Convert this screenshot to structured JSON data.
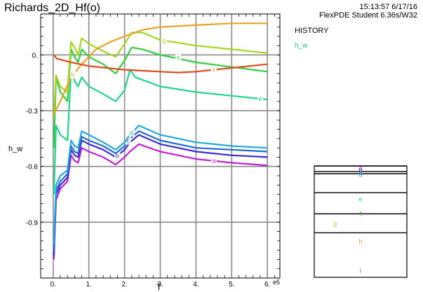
{
  "header": {
    "title": "Richards_2D_Hf(o)",
    "timestamp": "15:13:57 6/17/16",
    "version": "FlexPDE Student 6.36s/W32"
  },
  "side": {
    "history_label": "HISTORY",
    "variable_label": "h_w"
  },
  "chart_data": {
    "type": "line",
    "xlabel": "T",
    "ylabel": "h_w",
    "x_multiplier_label": "e5",
    "xlim": [
      -0.35,
      6.35
    ],
    "ylim": [
      -1.2,
      0.22
    ],
    "x_ticks": [
      0,
      1,
      2,
      3,
      4,
      5,
      6
    ],
    "x_tick_labels": [
      "0.",
      "1.",
      "2.",
      "3.",
      "4.",
      "5.",
      "6."
    ],
    "y_ticks": [
      0,
      -0.3,
      -0.6,
      -0.9
    ],
    "y_tick_labels": [
      "0.",
      "-0.3",
      "-0.6",
      "-0.9"
    ],
    "grid": true,
    "series": [
      {
        "name": "a",
        "color": "#c21fd6",
        "label_at": 4.5,
        "points": [
          [
            0.02,
            -1.1
          ],
          [
            0.08,
            -0.78
          ],
          [
            0.2,
            -0.72
          ],
          [
            0.4,
            -0.68
          ],
          [
            0.5,
            -0.54
          ],
          [
            0.6,
            -0.57
          ],
          [
            0.7,
            -0.58
          ],
          [
            0.8,
            -0.5
          ],
          [
            1.0,
            -0.52
          ],
          [
            1.4,
            -0.55
          ],
          [
            1.75,
            -0.59
          ],
          [
            2.0,
            -0.55
          ],
          [
            2.15,
            -0.52
          ],
          [
            2.4,
            -0.48
          ],
          [
            3.0,
            -0.52
          ],
          [
            4.0,
            -0.56
          ],
          [
            5.0,
            -0.58
          ],
          [
            6.0,
            -0.595
          ]
        ]
      },
      {
        "name": "b",
        "color": "#3a2bd6",
        "label_at": 1.8,
        "points": [
          [
            0.02,
            -1.08
          ],
          [
            0.08,
            -0.75
          ],
          [
            0.2,
            -0.7
          ],
          [
            0.4,
            -0.66
          ],
          [
            0.5,
            -0.51
          ],
          [
            0.6,
            -0.54
          ],
          [
            0.7,
            -0.55
          ],
          [
            0.8,
            -0.46
          ],
          [
            1.0,
            -0.48
          ],
          [
            1.4,
            -0.51
          ],
          [
            1.75,
            -0.55
          ],
          [
            2.0,
            -0.51
          ],
          [
            2.15,
            -0.47
          ],
          [
            2.4,
            -0.43
          ],
          [
            3.0,
            -0.48
          ],
          [
            4.0,
            -0.52
          ],
          [
            5.0,
            -0.54
          ],
          [
            6.0,
            -0.55
          ]
        ]
      },
      {
        "name": "c",
        "color": "#1f6bd6",
        "label_at": 2.1,
        "points": [
          [
            0.02,
            -1.06
          ],
          [
            0.08,
            -0.73
          ],
          [
            0.2,
            -0.68
          ],
          [
            0.4,
            -0.64
          ],
          [
            0.5,
            -0.49
          ],
          [
            0.6,
            -0.52
          ],
          [
            0.7,
            -0.53
          ],
          [
            0.8,
            -0.44
          ],
          [
            1.0,
            -0.46
          ],
          [
            1.4,
            -0.49
          ],
          [
            1.75,
            -0.53
          ],
          [
            2.0,
            -0.49
          ],
          [
            2.15,
            -0.45
          ],
          [
            2.4,
            -0.41
          ],
          [
            3.0,
            -0.46
          ],
          [
            4.0,
            -0.5
          ],
          [
            5.0,
            -0.51
          ],
          [
            6.0,
            -0.52
          ]
        ]
      },
      {
        "name": "d",
        "color": "#1fa9e0",
        "label_at": 2.2,
        "points": [
          [
            0.02,
            -1.02
          ],
          [
            0.08,
            -0.7
          ],
          [
            0.2,
            -0.65
          ],
          [
            0.4,
            -0.62
          ],
          [
            0.5,
            -0.46
          ],
          [
            0.6,
            -0.49
          ],
          [
            0.7,
            -0.5
          ],
          [
            0.8,
            -0.41
          ],
          [
            1.0,
            -0.43
          ],
          [
            1.4,
            -0.47
          ],
          [
            1.75,
            -0.51
          ],
          [
            2.0,
            -0.47
          ],
          [
            2.15,
            -0.43
          ],
          [
            2.4,
            -0.38
          ],
          [
            3.0,
            -0.43
          ],
          [
            4.0,
            -0.47
          ],
          [
            5.0,
            -0.49
          ],
          [
            6.0,
            -0.5
          ]
        ]
      },
      {
        "name": "e",
        "color": "#1fd68c",
        "label_at": 5.8,
        "points": [
          [
            0.02,
            -0.75
          ],
          [
            0.08,
            -0.38
          ],
          [
            0.2,
            -0.43
          ],
          [
            0.4,
            -0.46
          ],
          [
            0.5,
            -0.09
          ],
          [
            0.6,
            -0.14
          ],
          [
            0.7,
            -0.17
          ],
          [
            0.8,
            -0.12
          ],
          [
            1.0,
            -0.17
          ],
          [
            1.4,
            -0.21
          ],
          [
            1.75,
            -0.25
          ],
          [
            2.0,
            -0.19
          ],
          [
            2.15,
            -0.08
          ],
          [
            2.3,
            -0.12
          ],
          [
            3.0,
            -0.17
          ],
          [
            4.0,
            -0.2
          ],
          [
            5.0,
            -0.22
          ],
          [
            6.0,
            -0.24
          ]
        ]
      },
      {
        "name": "f",
        "color": "#2fcf3f",
        "label_at": 3.5,
        "points": [
          [
            0.02,
            -0.5
          ],
          [
            0.08,
            -0.12
          ],
          [
            0.2,
            -0.2
          ],
          [
            0.4,
            -0.25
          ],
          [
            0.5,
            0.03
          ],
          [
            0.6,
            -0.01
          ],
          [
            0.7,
            -0.04
          ],
          [
            0.8,
            0.03
          ],
          [
            1.0,
            -0.01
          ],
          [
            1.4,
            -0.05
          ],
          [
            1.75,
            -0.1
          ],
          [
            2.0,
            -0.03
          ],
          [
            2.2,
            0.04
          ],
          [
            2.5,
            0.03
          ],
          [
            3.0,
            0.0
          ],
          [
            4.0,
            -0.04
          ],
          [
            5.0,
            -0.065
          ],
          [
            6.0,
            -0.09
          ]
        ]
      },
      {
        "name": "g",
        "color": "#a6d61f",
        "label_at": 3.1,
        "points": [
          [
            0.02,
            -0.33
          ],
          [
            0.08,
            -0.11
          ],
          [
            0.2,
            -0.17
          ],
          [
            0.4,
            -0.2
          ],
          [
            0.5,
            0.07
          ],
          [
            0.6,
            0.04
          ],
          [
            0.7,
            0.0
          ],
          [
            0.8,
            0.09
          ],
          [
            1.0,
            0.06
          ],
          [
            1.4,
            0.02
          ],
          [
            1.75,
            -0.01
          ],
          [
            2.0,
            0.06
          ],
          [
            2.2,
            0.12
          ],
          [
            2.5,
            0.12
          ],
          [
            3.0,
            0.08
          ],
          [
            4.0,
            0.05
          ],
          [
            5.0,
            0.03
          ],
          [
            6.0,
            0.01
          ]
        ]
      },
      {
        "name": "h",
        "color": "#e6a31f",
        "label_at": 0.55,
        "points": [
          [
            0.02,
            -0.32
          ],
          [
            0.2,
            -0.25
          ],
          [
            0.5,
            -0.12
          ],
          [
            0.8,
            -0.05
          ],
          [
            1.2,
            0.03
          ],
          [
            1.6,
            0.07
          ],
          [
            2.0,
            0.1
          ],
          [
            2.5,
            0.135
          ],
          [
            3.0,
            0.15
          ],
          [
            4.0,
            0.16
          ],
          [
            5.0,
            0.17
          ],
          [
            6.0,
            0.17
          ]
        ]
      },
      {
        "name": "i",
        "color": "#e04a1f",
        "label_at": 4.5,
        "points": [
          [
            0.02,
            0.0
          ],
          [
            0.1,
            -0.02
          ],
          [
            0.5,
            -0.04
          ],
          [
            1.0,
            -0.06
          ],
          [
            1.5,
            -0.07
          ],
          [
            2.0,
            -0.08
          ],
          [
            2.5,
            -0.085
          ],
          [
            3.0,
            -0.09
          ],
          [
            3.5,
            -0.095
          ],
          [
            4.0,
            -0.09
          ],
          [
            4.5,
            -0.08
          ],
          [
            5.0,
            -0.07
          ],
          [
            6.0,
            -0.05
          ]
        ]
      }
    ],
    "inset": {
      "lines": [
        0.0,
        0.05,
        0.07,
        0.24,
        0.43,
        0.6
      ],
      "markers": [
        {
          "label": "a",
          "color": "#c21fd6",
          "pos": 0.02
        },
        {
          "label": "b",
          "color": "#3a2bd6",
          "pos": 0.04
        },
        {
          "label": "c",
          "color": "#1f6bd6",
          "pos": 0.06
        },
        {
          "label": "d",
          "color": "#1fa9e0",
          "pos": 0.08
        },
        {
          "label": "e",
          "color": "#1fd68c",
          "pos": 0.3
        },
        {
          "label": "f",
          "color": "#2fcf3f",
          "pos": 0.43
        },
        {
          "label": "g",
          "color": "#a6d61f",
          "pos": 0.52,
          "offset": -0.55
        },
        {
          "label": "h",
          "color": "#e6a31f",
          "pos": 0.68
        },
        {
          "label": "i",
          "color": "#e04a1f",
          "pos": 0.94
        }
      ]
    }
  }
}
